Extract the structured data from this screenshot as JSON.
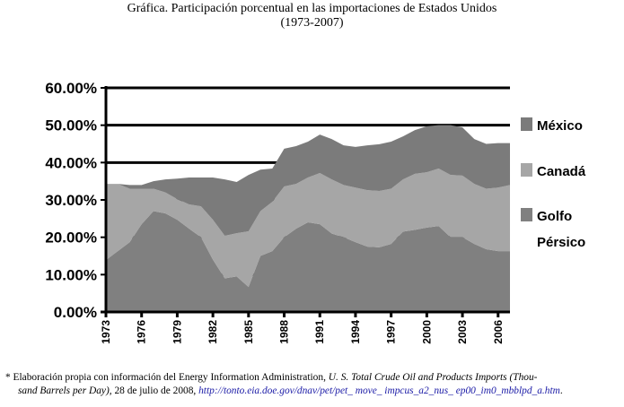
{
  "chart_data": {
    "type": "area",
    "stacked": true,
    "title": "Gráfica. Participación porcentual en las importaciones de Estados Unidos",
    "subtitle": "(1973-2007)",
    "xlabel": "",
    "ylabel": "",
    "ylim": [
      0,
      60
    ],
    "yticks": [
      "0.00%",
      "10.00%",
      "20.00%",
      "30.00%",
      "40.00%",
      "50.00%",
      "60.00%"
    ],
    "xticks": [
      "1973",
      "1976",
      "1979",
      "1982",
      "1985",
      "1988",
      "1991",
      "1994",
      "1997",
      "2000",
      "2003",
      "2006"
    ],
    "grid": true,
    "legend_position": "right",
    "x": [
      1973,
      1974,
      1975,
      1976,
      1977,
      1978,
      1979,
      1980,
      1981,
      1982,
      1983,
      1984,
      1985,
      1986,
      1987,
      1988,
      1989,
      1990,
      1991,
      1992,
      1993,
      1994,
      1995,
      1996,
      1997,
      1998,
      1999,
      2000,
      2001,
      2002,
      2003,
      2004,
      2005,
      2006,
      2007
    ],
    "series": [
      {
        "name": "Golfo Pérsico",
        "legend_lines": [
          "Golfo",
          "Pérsico"
        ],
        "color": "#808080",
        "values": [
          13.9,
          16.3,
          18.7,
          23.5,
          27.0,
          26.4,
          24.7,
          22.3,
          20.0,
          14.0,
          9.0,
          9.5,
          6.7,
          15.0,
          16.3,
          20.0,
          22.3,
          24.0,
          23.5,
          21.0,
          20.0,
          18.7,
          17.5,
          17.3,
          18.2,
          21.5,
          22.0,
          22.6,
          23.0,
          20.0,
          20.0,
          18.2,
          16.8,
          16.3,
          16.3
        ]
      },
      {
        "name": "Canadá",
        "legend_lines": [
          "Canadá"
        ],
        "color": "#a6a6a6",
        "values": [
          20.4,
          18.0,
          14.3,
          9.5,
          6.0,
          5.6,
          5.5,
          6.5,
          8.3,
          10.7,
          11.4,
          11.6,
          14.9,
          12.0,
          13.2,
          13.6,
          12.0,
          12.0,
          13.7,
          14.5,
          14.0,
          14.6,
          15.1,
          15.1,
          14.8,
          14.0,
          15.0,
          14.8,
          15.4,
          16.7,
          16.5,
          16.1,
          16.2,
          17.0,
          17.7
        ]
      },
      {
        "name": "México",
        "legend_lines": [
          "México"
        ],
        "color": "#7b7b7b",
        "values": [
          0.0,
          0.0,
          1.0,
          1.0,
          2.0,
          3.5,
          5.5,
          7.2,
          7.7,
          11.3,
          15.1,
          13.7,
          15.1,
          11.1,
          8.9,
          10.1,
          10.1,
          9.6,
          10.3,
          10.8,
          10.6,
          10.9,
          12.0,
          12.5,
          12.6,
          11.5,
          11.7,
          12.3,
          11.6,
          13.3,
          12.9,
          12.0,
          12.0,
          11.9,
          11.2
        ]
      }
    ]
  },
  "footnote": {
    "prefix": "* Elaboración propia con información del Energy Information Administration, ",
    "source_title_1": "U. S. Total Crude Oil and Products Imports (Thou-",
    "source_title_2": "sand Barrels per Day)",
    "date": ", 28 de julio de 2008, ",
    "url": "http://tonto.eia.doe.gov/dnav/pet/pet_ move_ impcus_a2_nus_ ep00_im0_mbblpd_a.htm",
    "suffix": "."
  }
}
